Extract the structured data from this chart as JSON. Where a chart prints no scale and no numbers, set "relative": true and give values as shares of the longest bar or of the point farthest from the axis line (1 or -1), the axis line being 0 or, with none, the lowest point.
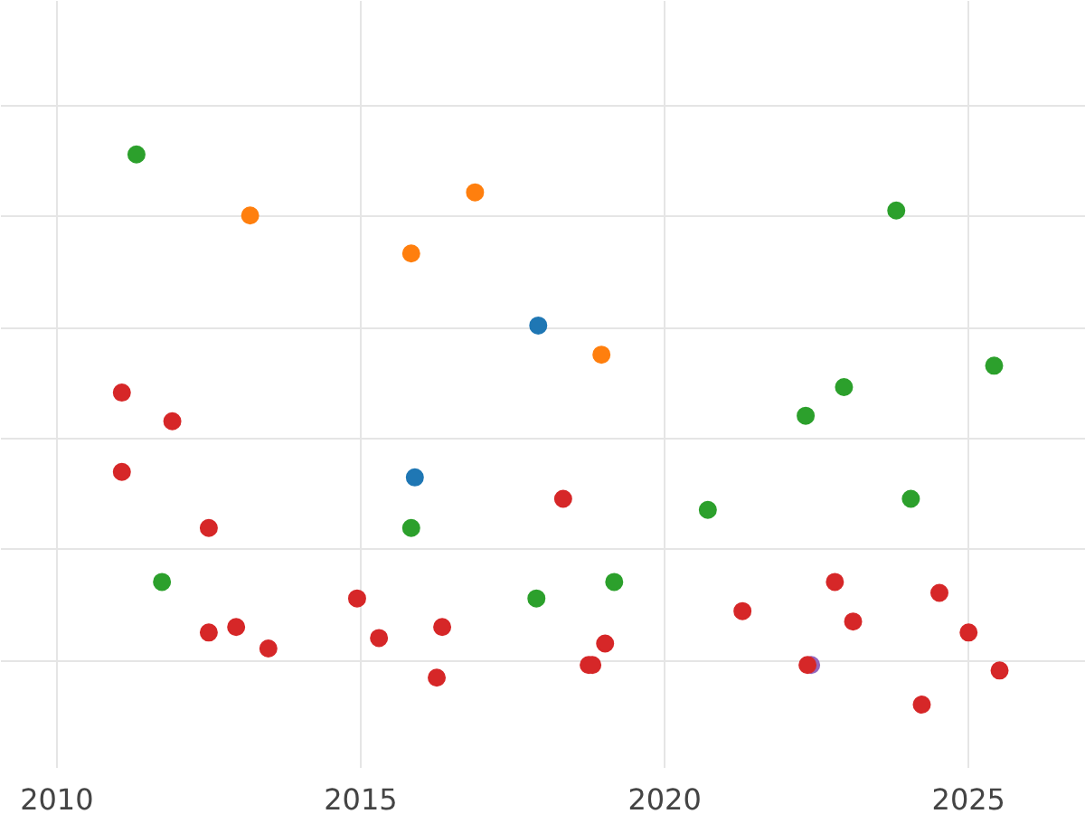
{
  "chart_data": {
    "type": "scatter",
    "relative": true,
    "xlim": [
      2009.08,
      2026.93
    ],
    "xticks": [
      2010,
      2015,
      2020,
      2025
    ],
    "grid": true,
    "marker": "circle",
    "series": [
      {
        "color": "#2ca02c",
        "x": [
          2011.31,
          2011.73,
          2015.83,
          2017.89,
          2019.17,
          2020.71,
          2022.32,
          2022.95,
          2023.81,
          2024.05,
          2025.42
        ],
        "values": [
          1.0,
          0.223,
          0.321,
          0.193,
          0.223,
          0.354,
          0.525,
          0.577,
          0.898,
          0.374,
          0.616
        ]
      },
      {
        "color": "#ff7f0e",
        "x": [
          2013.18,
          2015.83,
          2016.88,
          2018.96
        ],
        "values": [
          0.889,
          0.82,
          0.931,
          0.636
        ]
      },
      {
        "color": "#1f77b4",
        "x": [
          2017.92,
          2015.89
        ],
        "values": [
          0.689,
          0.413
        ]
      },
      {
        "color": "#9467bd",
        "x": [
          2022.41
        ],
        "values": [
          0.072
        ]
      },
      {
        "color": "#d62728",
        "x": [
          2011.07,
          2011.9,
          2011.07,
          2012.5,
          2012.5,
          2012.95,
          2013.48,
          2014.94,
          2015.3,
          2016.34,
          2016.25,
          2018.33,
          2018.75,
          2018.81,
          2019.02,
          2021.28,
          2022.35,
          2022.8,
          2023.1,
          2024.23,
          2024.52,
          2025.0,
          2025.51
        ],
        "values": [
          0.567,
          0.515,
          0.423,
          0.321,
          0.131,
          0.141,
          0.102,
          0.193,
          0.121,
          0.141,
          0.049,
          0.374,
          0.072,
          0.072,
          0.111,
          0.17,
          0.072,
          0.223,
          0.151,
          0.0,
          0.203,
          0.131,
          0.062
        ]
      }
    ]
  }
}
